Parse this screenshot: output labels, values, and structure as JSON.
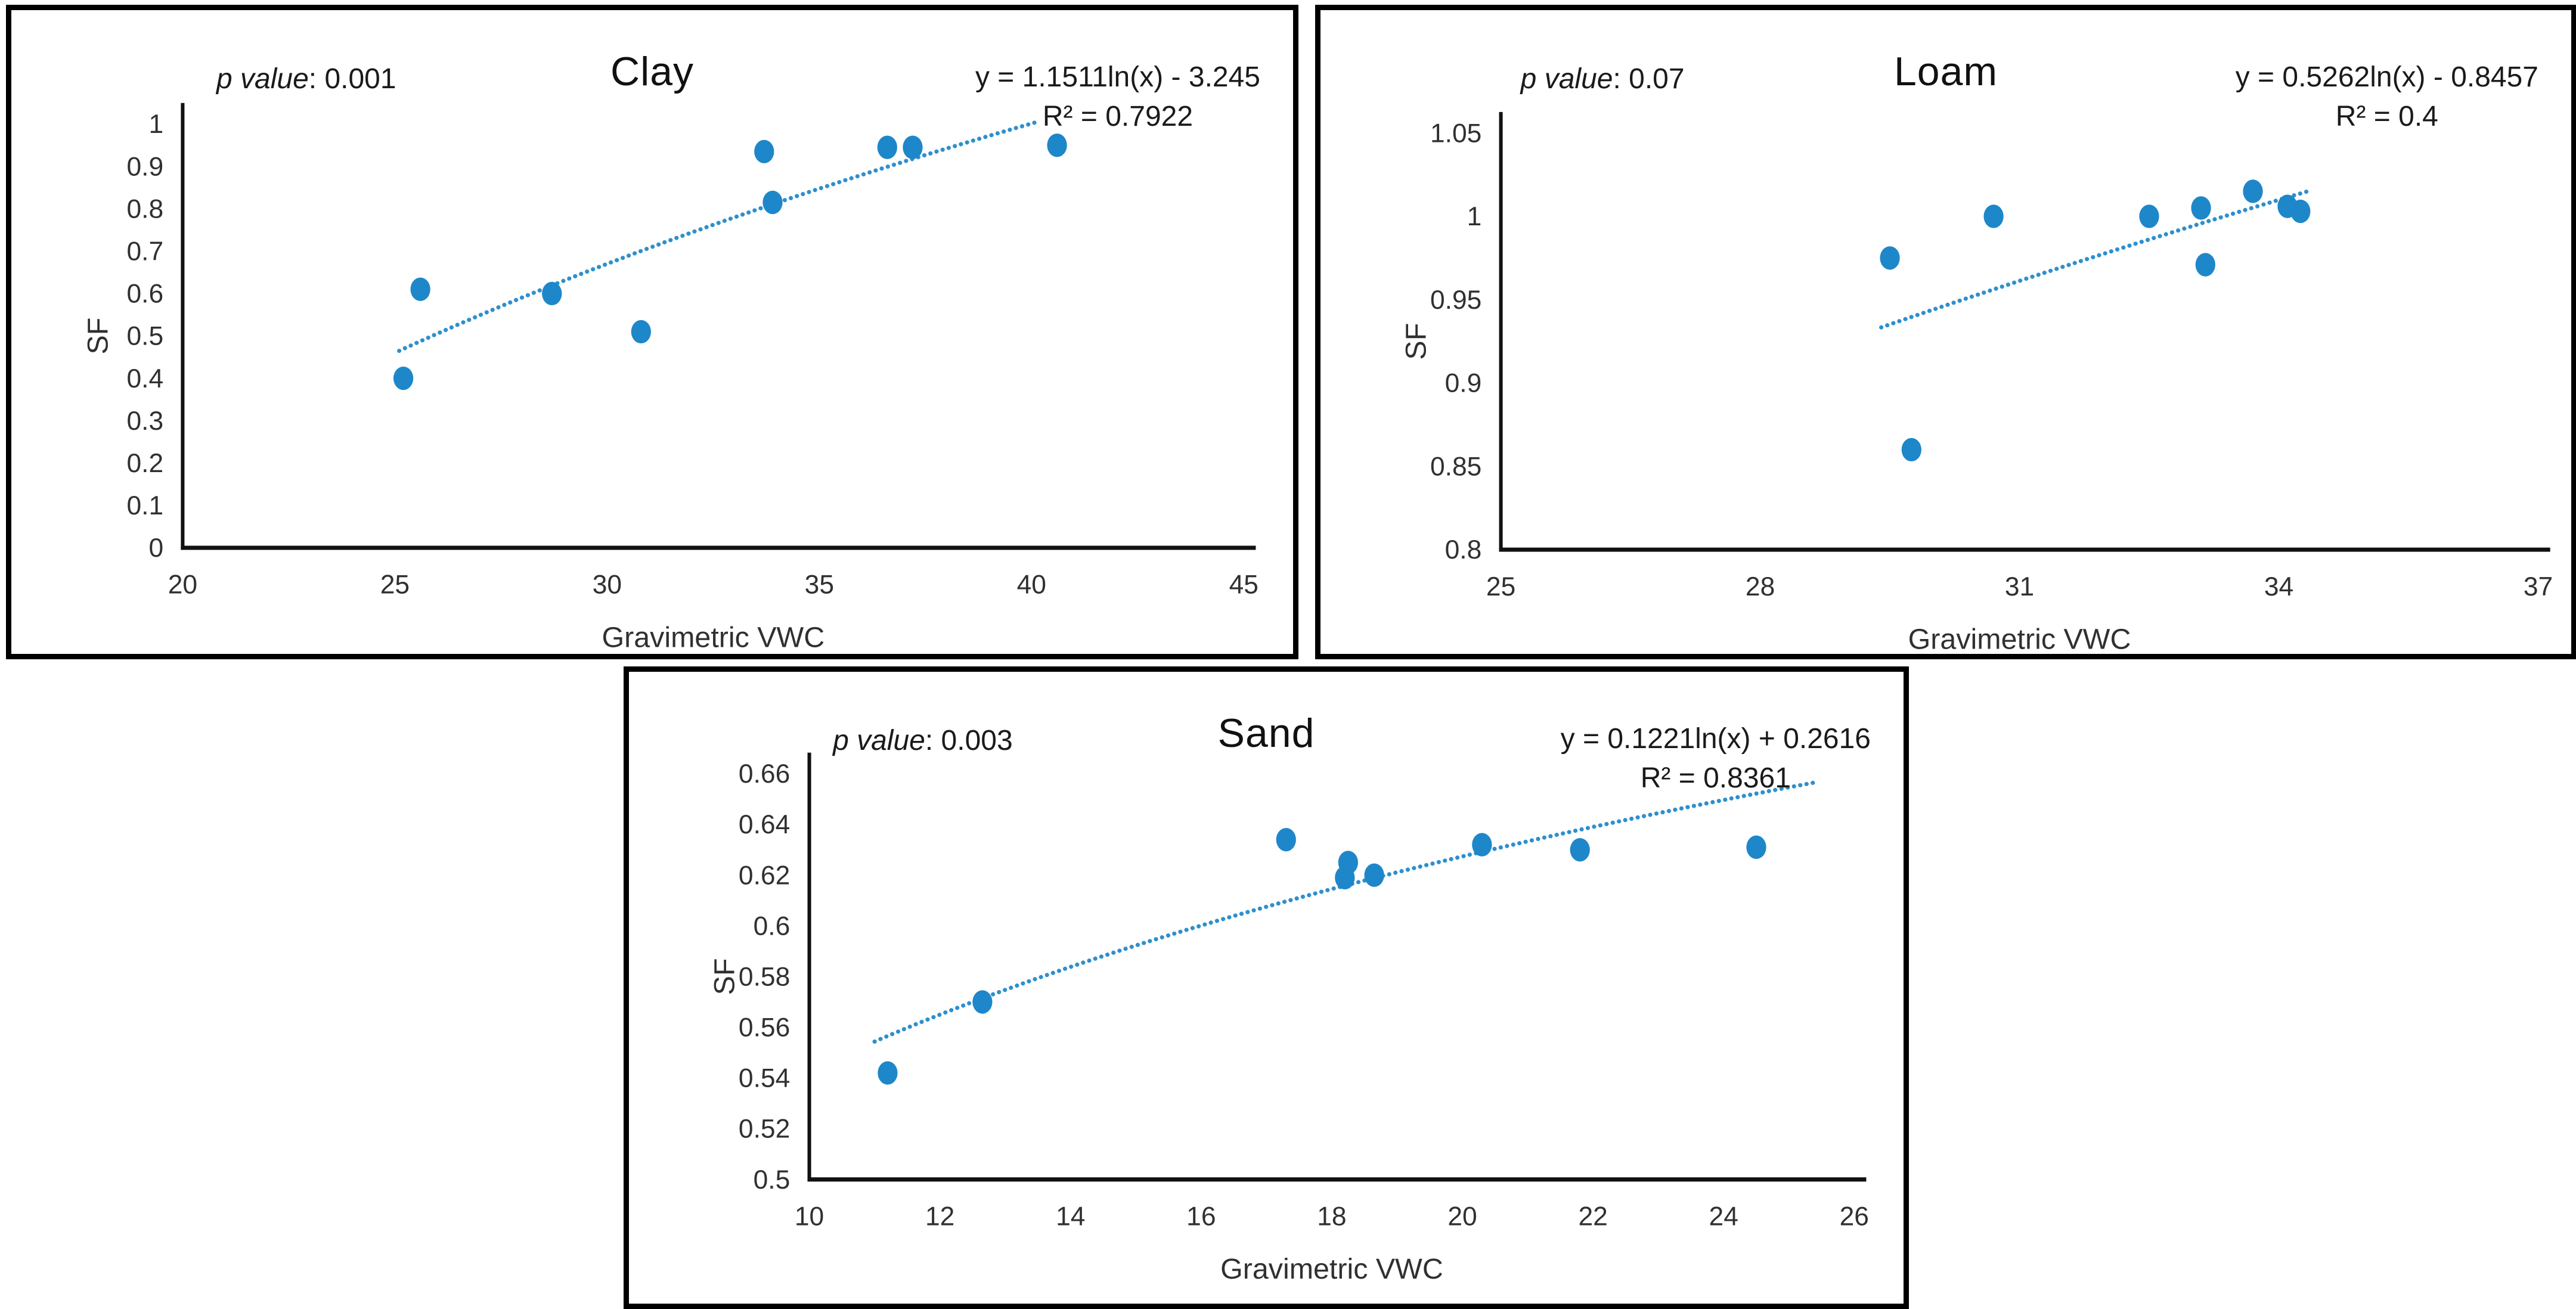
{
  "figure": {
    "description": "Three scatter plots of SF versus Gravimetric VWC for Clay, Loam and Sand soils, each with a dotted logarithmic trendline, regression equation, R-squared and p value.",
    "colors": {
      "marker": "#1d87c9",
      "trendline": "#2e8fce",
      "axis": "#111111",
      "tick_text": "#303030",
      "border": "#000000",
      "background": "#ffffff"
    }
  },
  "chart_data": [
    {
      "id": "clay",
      "type": "scatter",
      "title": "Clay",
      "p_label": "p value",
      "p_rest": ": 0.001",
      "equation": "y = 1.1511ln(x) - 3.245",
      "r2": "R² = 0.7922",
      "xlabel": "Gravimetric VWC",
      "ylabel": "SF",
      "xlim": [
        20,
        45
      ],
      "ylim": [
        0,
        1
      ],
      "x_ticks": [
        "20",
        "25",
        "30",
        "35",
        "40",
        "45"
      ],
      "x_tick_values": [
        20,
        25,
        30,
        35,
        40,
        45
      ],
      "y_ticks": [
        "0",
        "0.1",
        "0.2",
        "0.3",
        "0.4",
        "0.5",
        "0.6",
        "0.7",
        "0.8",
        "0.9",
        "1"
      ],
      "y_tick_values": [
        0,
        0.1,
        0.2,
        0.3,
        0.4,
        0.5,
        0.6,
        0.7,
        0.8,
        0.9,
        1
      ],
      "legend": "none",
      "grid": false,
      "points": [
        [
          25.2,
          0.4
        ],
        [
          25.6,
          0.61
        ],
        [
          28.7,
          0.6
        ],
        [
          30.8,
          0.51
        ],
        [
          33.7,
          0.935
        ],
        [
          33.9,
          0.815
        ],
        [
          36.6,
          0.945
        ],
        [
          37.2,
          0.945
        ],
        [
          40.6,
          0.95
        ]
      ],
      "trendline": {
        "form": "log",
        "a": 1.1511,
        "b": -3.245,
        "x_start": 25.1,
        "x_end": 40.2
      }
    },
    {
      "id": "loam",
      "type": "scatter",
      "title": "Loam",
      "p_label": "p value",
      "p_rest": ": 0.07",
      "equation": "y = 0.5262ln(x) - 0.8457",
      "r2": "R² = 0.4",
      "xlabel": "Gravimetric VWC",
      "ylabel": "SF",
      "xlim": [
        25,
        37
      ],
      "ylim": [
        0.8,
        1.05
      ],
      "x_ticks": [
        "25",
        "28",
        "31",
        "34",
        "37"
      ],
      "x_tick_values": [
        25,
        28,
        31,
        34,
        37
      ],
      "y_ticks": [
        "0.8",
        "0.85",
        "0.9",
        "0.95",
        "1",
        "1.05"
      ],
      "y_tick_values": [
        0.8,
        0.85,
        0.9,
        0.95,
        1,
        1.05
      ],
      "legend": "none",
      "grid": false,
      "points": [
        [
          29.5,
          0.975
        ],
        [
          29.75,
          0.86
        ],
        [
          30.7,
          1.0
        ],
        [
          32.5,
          1.0
        ],
        [
          33.1,
          1.005
        ],
        [
          33.15,
          0.971
        ],
        [
          33.7,
          1.015
        ],
        [
          34.1,
          1.006
        ],
        [
          34.25,
          1.003
        ]
      ],
      "trendline": {
        "form": "log",
        "a": 0.5262,
        "b": -0.8457,
        "x_start": 29.4,
        "x_end": 34.35
      }
    },
    {
      "id": "sand",
      "type": "scatter",
      "title": "Sand",
      "p_label": "p value",
      "p_rest": ": 0.003",
      "equation": "y = 0.1221ln(x) + 0.2616",
      "r2": "R² = 0.8361",
      "xlabel": "Gravimetric VWC",
      "ylabel": "SF",
      "xlim": [
        10,
        26
      ],
      "ylim": [
        0.5,
        0.66
      ],
      "x_ticks": [
        "10",
        "12",
        "14",
        "16",
        "18",
        "20",
        "22",
        "24",
        "26"
      ],
      "x_tick_values": [
        10,
        12,
        14,
        16,
        18,
        20,
        22,
        24,
        26
      ],
      "y_ticks": [
        "0.5",
        "0.52",
        "0.54",
        "0.56",
        "0.58",
        "0.6",
        "0.62",
        "0.64",
        "0.66"
      ],
      "y_tick_values": [
        0.5,
        0.52,
        0.54,
        0.56,
        0.58,
        0.6,
        0.62,
        0.64,
        0.66
      ],
      "legend": "none",
      "grid": false,
      "points": [
        [
          11.2,
          0.542
        ],
        [
          12.65,
          0.57
        ],
        [
          17.3,
          0.634
        ],
        [
          18.25,
          0.625
        ],
        [
          18.2,
          0.619
        ],
        [
          18.65,
          0.62
        ],
        [
          20.3,
          0.632
        ],
        [
          21.8,
          0.63
        ],
        [
          24.5,
          0.631
        ]
      ],
      "trendline": {
        "form": "log",
        "a": 0.1221,
        "b": 0.2616,
        "x_start": 11.0,
        "x_end": 25.4
      }
    }
  ]
}
